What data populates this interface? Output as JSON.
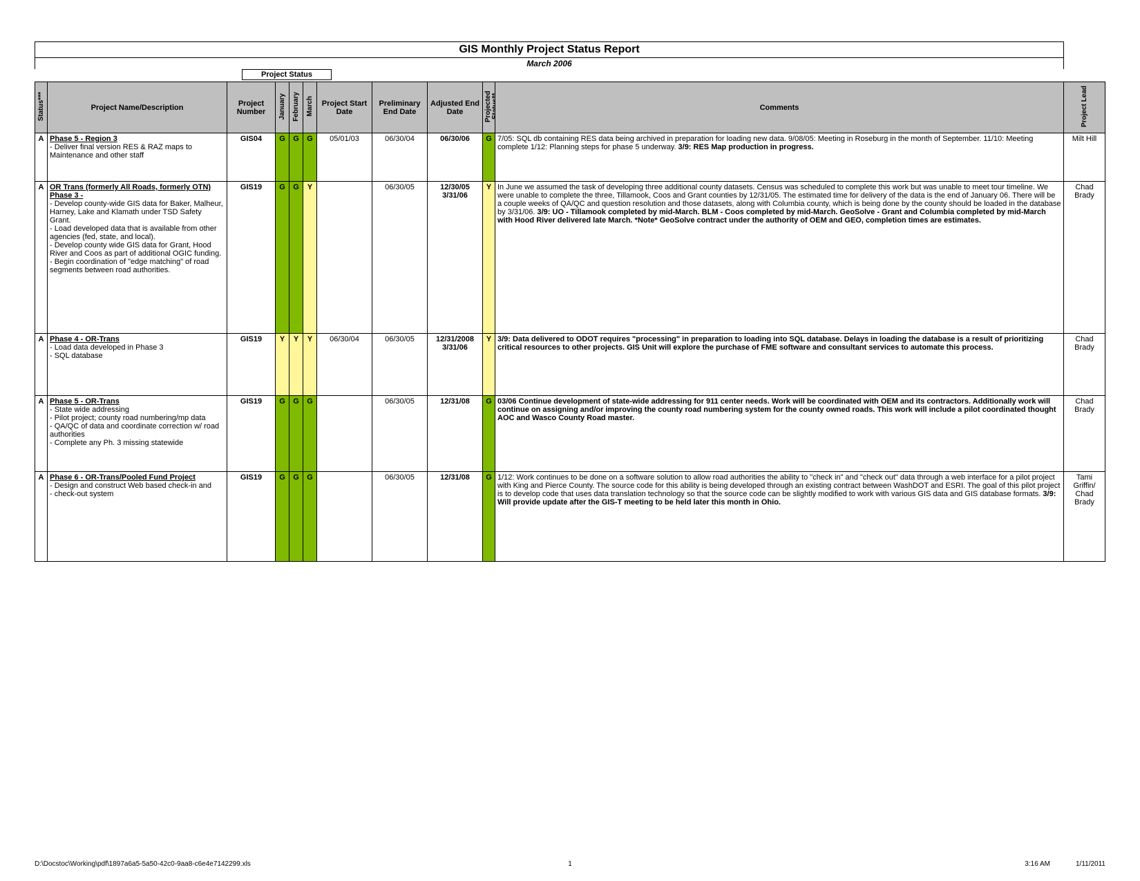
{
  "title": "GIS Monthly Project Status Report",
  "subtitle": "March 2006",
  "project_status_label": "Project Status",
  "headers": {
    "status": "Status***",
    "name": "Project Name/Description",
    "number": "Project Number",
    "jan": "January",
    "feb": "February",
    "mar": "March",
    "start": "Project Start Date",
    "prelim": "Preliminary End Date",
    "adj": "Adjusted End Date",
    "projected": "Projected Status**",
    "comments": "Comments",
    "lead": "Project Lead"
  },
  "status_colors": {
    "G": "#7fba00",
    "Y": "#fff799"
  },
  "rows": [
    {
      "status": "A",
      "title": "Phase 5 - Region 3",
      "desc": " - Deliver final version RES & RAZ maps to Maintenance and other staff",
      "number": "GIS04",
      "jan": "G",
      "feb": "G",
      "mar": "G",
      "start": "05/01/03",
      "prelim": "06/30/04",
      "adj": "06/30/06",
      "projected": "G",
      "comments_plain": "7/05: SQL db containing RES data being archived in preparation for loading new data.  9/08/05: Meeting in Roseburg in the month of September.  11/10: Meeting complete 1/12: Planning steps for phase 5 underway.  ",
      "comments_bold": "3/9: RES Map production in progress.",
      "lead": "Milt Hill"
    },
    {
      "status": "A",
      "title": "OR Trans (formerly All Roads, formerly OTN)\nPhase 3 -",
      "desc": "- Develop county-wide GIS data for Baker, Malheur, Harney, Lake and Klamath under TSD Safety Grant.\n-  Load developed data that is available from other agencies (fed, state, and local).\n -  Develop county wide GIS data for Grant, Hood River and Coos as part of additional OGIC funding.\n -  Begin coordination of \"edge matching\" of road segments between road authorities.",
      "number": "GIS19",
      "jan": "G",
      "feb": "G",
      "mar": "Y",
      "start": "",
      "prelim": "06/30/05",
      "adj": "12/30/05\n3/31/06",
      "projected": "Y",
      "comments_plain": "In June we assumed the task of developing three additional  county datasets. Census was scheduled to complete this work but was unable to meet tour timeline. We were unable to complete the three, Tillamook, Coos and Grant counties by 12/31/05. The estimated time for delivery of the data is the end of January 06. There will be a couple weeks of QA/QC and question resolution and those datasets, along with Columbia county, which is being done by the county should be loaded in the database by 3/31/06. ",
      "comments_bold": "3/9: UO - Tillamook completed by mid-March. BLM - Coos completed by mid-March. GeoSolve - Grant and Columbia completed by mid-March with Hood River delivered late March. *Note* GeoSolve contract under the authority of OEM and GEO, completion times are estimates.",
      "lead": "Chad Brady"
    },
    {
      "status": "A",
      "title": "Phase 4 - OR-Trans",
      "desc": " - Load data developed in Phase 3\n - SQL database",
      "number": "GIS19",
      "jan": "Y",
      "feb": "Y",
      "mar": "Y",
      "start": "06/30/04",
      "prelim": "06/30/05",
      "adj": "12/31/2008\n3/31/06",
      "projected": "Y",
      "comments_plain": "",
      "comments_bold": "3/9: Data delivered to ODOT requires \"processing\" in preparation to loading into SQL database. Delays in loading the database is a result of prioritizing critical resources to other projects. GIS Unit will explore the purchase of FME software and consultant services to automate this process.",
      "lead": "Chad Brady"
    },
    {
      "status": "A",
      "title": " Phase 5 - OR-Trans",
      "desc": " - State wide addressing\n - Pilot project; county road numbering/mp data\n - QA/QC of data and coordinate correction w/ road authorities\n - Complete any Ph. 3 missing statewide",
      "number": "GIS19",
      "jan": "G",
      "feb": "G",
      "mar": "G",
      "start": "",
      "prelim": "06/30/05",
      "adj": "12/31/08",
      "projected": "G",
      "comments_plain": "",
      "comments_bold": "03/06 Continue development of state-wide addressing for 911 center needs. Work will be coordinated with OEM and its contractors.  Additionally work will continue on assigning and/or improving the county road numbering system for the county owned roads.  This work will include a pilot coordinated thought AOC and Wasco County Road master.",
      "lead": "Chad Brady"
    },
    {
      "status": "A",
      "title": "Phase 6 - OR-Trans/Pooled Fund Project",
      "desc": " - Design and construct Web based check-in and\n - check-out system",
      "number": "GIS19",
      "jan": "G",
      "feb": "G",
      "mar": "G",
      "start": "",
      "prelim": "06/30/05",
      "adj": "12/31/08",
      "projected": "G",
      "comments_plain": "1/12: Work continues to be done on a software solution to allow road authorities the ability to \"check in\" and \"check out\" data through a web interface for a pilot project with King and Pierce County. The source code for this ability is being developed through an existing contract between WashDOT and ESRI. The goal of this pilot project is to develop code that uses data translation technology so that the source code can be slightly modified to work with various GIS data and GIS database formats.  ",
      "comments_bold": "3/9: Will provide update after the GIS-T meeting to be held later this month in Ohio.",
      "lead": "Tami Griffin/ Chad Brady"
    }
  ],
  "footer": {
    "path": "D:\\Docstoc\\Working\\pdf\\1897a6a5-5a50-42c0-9aa8-c6e4e7142299.xls",
    "page": "1",
    "time": "3:16 AM",
    "date": "1/11/2011"
  }
}
